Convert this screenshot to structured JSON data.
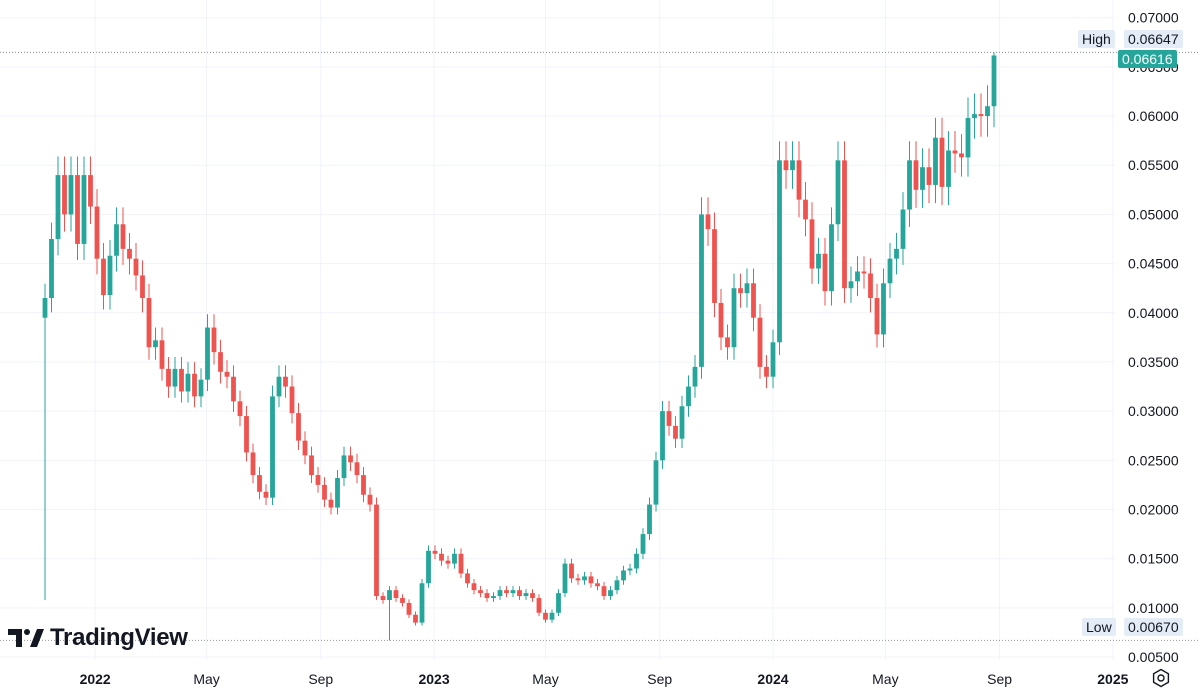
{
  "brand": {
    "name": "TradingView",
    "logo_icon": "tradingview-logo-icon"
  },
  "markers": {
    "high_label": "High",
    "high_value": "0.06647",
    "low_label": "Low",
    "low_value": "0.00670",
    "last_value": "0.06616"
  },
  "colors": {
    "up": "#26a69a",
    "down": "#ef5350",
    "grid": "#f0f3fa",
    "text": "#131722",
    "marker_bg": "#e3ecf7"
  },
  "settings_icon": "gear-icon",
  "chart_data": {
    "type": "candlestick",
    "interval": "weekly",
    "ylim": [
      0.0047,
      0.0718
    ],
    "y_ticks": [
      "0.07000",
      "0.06500",
      "0.06000",
      "0.05500",
      "0.05000",
      "0.04500",
      "0.04000",
      "0.03500",
      "0.03000",
      "0.02500",
      "0.02000",
      "0.01500",
      "0.01000",
      "0.00500"
    ],
    "x_ticks": [
      {
        "label": "2022",
        "date": "2022-01-01",
        "year": true
      },
      {
        "label": "May",
        "date": "2022-05-01",
        "year": false
      },
      {
        "label": "Sep",
        "date": "2022-09-01",
        "year": false
      },
      {
        "label": "2023",
        "date": "2023-01-01",
        "year": true
      },
      {
        "label": "May",
        "date": "2023-05-01",
        "year": false
      },
      {
        "label": "Sep",
        "date": "2023-09-01",
        "year": false
      },
      {
        "label": "2024",
        "date": "2024-01-01",
        "year": true
      },
      {
        "label": "May",
        "date": "2024-05-01",
        "year": false
      },
      {
        "label": "Sep",
        "date": "2024-09-01",
        "year": false
      },
      {
        "label": "2025",
        "date": "2025-01-01",
        "year": true
      }
    ],
    "high": 0.06647,
    "low": 0.0067,
    "last": 0.06616,
    "closes": [
      0.0415,
      0.0475,
      0.054,
      0.05,
      0.054,
      0.047,
      0.054,
      0.0508,
      0.0455,
      0.0418,
      0.0458,
      0.049,
      0.0465,
      0.0455,
      0.0438,
      0.0415,
      0.0365,
      0.0372,
      0.0343,
      0.0325,
      0.0343,
      0.032,
      0.0338,
      0.0315,
      0.0332,
      0.0385,
      0.036,
      0.034,
      0.0335,
      0.031,
      0.0295,
      0.0258,
      0.0235,
      0.0218,
      0.0212,
      0.0315,
      0.0335,
      0.0325,
      0.0298,
      0.027,
      0.0255,
      0.0235,
      0.0225,
      0.021,
      0.0202,
      0.0232,
      0.0255,
      0.0248,
      0.0235,
      0.0215,
      0.0205,
      0.0112,
      0.0108,
      0.0118,
      0.011,
      0.0105,
      0.0093,
      0.0085,
      0.0125,
      0.0158,
      0.0155,
      0.0148,
      0.0145,
      0.0155,
      0.0135,
      0.0125,
      0.0118,
      0.0115,
      0.011,
      0.0112,
      0.0118,
      0.0115,
      0.0118,
      0.0112,
      0.0115,
      0.011,
      0.0095,
      0.0088,
      0.0095,
      0.0115,
      0.0145,
      0.013,
      0.0128,
      0.0132,
      0.0125,
      0.0122,
      0.0112,
      0.0118,
      0.0128,
      0.0138,
      0.014,
      0.0155,
      0.0175,
      0.0205,
      0.025,
      0.03,
      0.0285,
      0.0272,
      0.0305,
      0.0325,
      0.0345,
      0.05,
      0.0485,
      0.041,
      0.0375,
      0.0365,
      0.0425,
      0.042,
      0.043,
      0.0395,
      0.0345,
      0.0335,
      0.037,
      0.0555,
      0.0545,
      0.0555,
      0.0515,
      0.0495,
      0.0445,
      0.046,
      0.0422,
      0.049,
      0.0555,
      0.0425,
      0.0432,
      0.0442,
      0.044,
      0.0415,
      0.0378,
      0.043,
      0.0455,
      0.0465,
      0.0505,
      0.0555,
      0.0525,
      0.0548,
      0.053,
      0.0578,
      0.0528,
      0.0565,
      0.0562,
      0.0558,
      0.0598,
      0.0602,
      0.06,
      0.061,
      0.06616
    ]
  }
}
